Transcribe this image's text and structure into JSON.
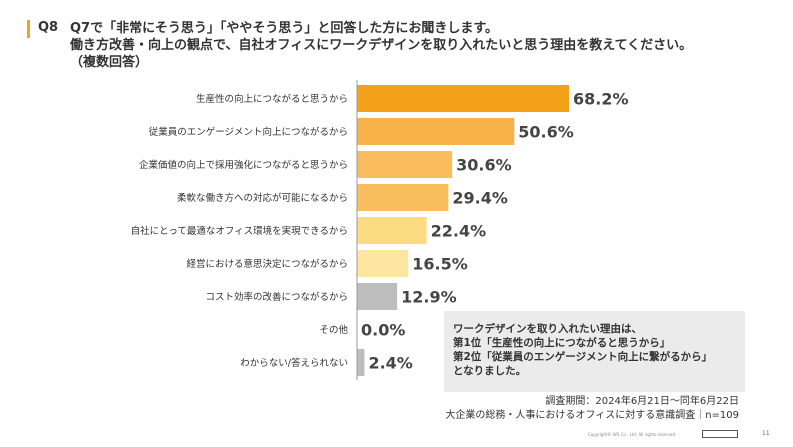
{
  "question": {
    "number": "Q8",
    "lines": [
      "Q7で「非常にそう思う」「ややそう思う」と回答した方にお聞きします。",
      "働き方改善・向上の観点で、自社オフィスにワークデザインを取り入れたいと思う理由を教えてください。",
      "（複数回答）"
    ]
  },
  "chart_data": {
    "type": "bar",
    "orientation": "horizontal",
    "categories": [
      "生産性の向上につながると思うから",
      "従業員のエンゲージメント向上につながるから",
      "企業価値の向上で採用強化につながると思うから",
      "柔軟な働き方への対応が可能になるから",
      "自社にとって最適なオフィス環境を実現できるから",
      "経営における意思決定につながるから",
      "コスト効率の改善につながるから",
      "その他",
      "わからない/答えられない"
    ],
    "values": [
      68.2,
      50.6,
      30.6,
      29.4,
      22.4,
      16.5,
      12.9,
      0.0,
      2.4
    ],
    "value_labels": [
      "68.2%",
      "50.6%",
      "30.6%",
      "29.4%",
      "22.4%",
      "16.5%",
      "12.9%",
      "0.0%",
      "2.4%"
    ],
    "colors": [
      "#f5a21b",
      "#f8b24a",
      "#f9bd5e",
      "#f9bf5f",
      "#fcdc83",
      "#fde6a0",
      "#bdbdbd",
      "#bdbdbd",
      "#bdbdbd"
    ],
    "xlim": [
      0,
      100
    ],
    "grid": false,
    "legend": "none"
  },
  "note": {
    "lines": [
      "ワークデザインを取り入れたい理由は、",
      "第1位「生産性の向上につながると思うから」",
      "第2位「従業員のエンゲージメント向上に繋がるから」",
      "となりました。"
    ]
  },
  "source": {
    "lines": [
      "調査期間：2024年6月21日〜同年6月22日",
      "大企業の総務・人事におけるオフィスに対する意識調査｜n=109"
    ]
  },
  "footer": {
    "copyright": "Copyright© WS Co., Ltd. All rights reserved.",
    "page": "11"
  }
}
